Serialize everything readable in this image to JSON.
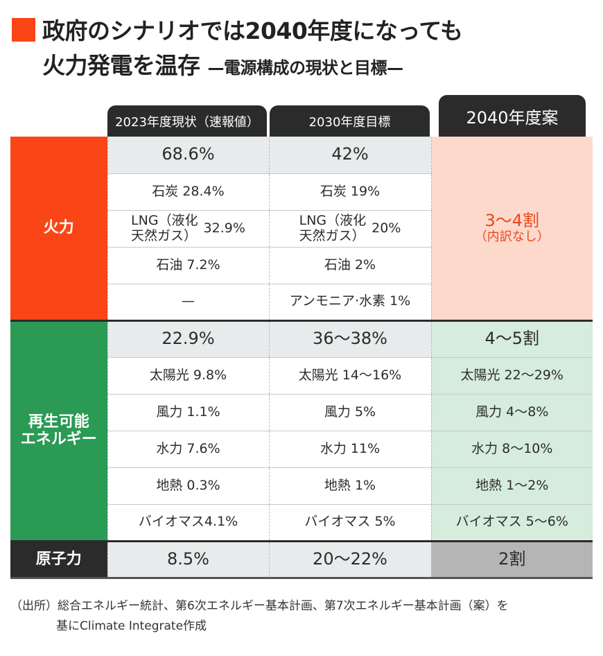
{
  "title": {
    "line1": "政府のシナリオでは2040年度になっても",
    "line2": "火力発電を温存",
    "subtitle": "—電源構成の現状と目標—"
  },
  "headers": [
    "2023年度現状（速報値）",
    "2030年度目標",
    "2040年度案"
  ],
  "fossil": {
    "label": "火力",
    "total": [
      "68.6%",
      "42%"
    ],
    "coal": [
      "石炭 28.4%",
      "石炭 19%"
    ],
    "lng_name": "LNG（液化天然ガス）",
    "lng_name_1": "LNG（液化",
    "lng_name_2": "天然ガス）",
    "lng": [
      "32.9%",
      "20%"
    ],
    "oil": [
      "石油 7.2%",
      "石油 2%"
    ],
    "ammonia": [
      "—",
      "アンモニア·水素 1%"
    ],
    "plan": "3〜4割",
    "plan_note": "（内訳なし）"
  },
  "renewable": {
    "label_1": "再生可能",
    "label_2": "エネルギー",
    "total": [
      "22.9%",
      "36〜38%",
      "4〜5割"
    ],
    "solar": [
      "太陽光 9.8%",
      "太陽光 14〜16%",
      "太陽光 22〜29%"
    ],
    "wind": [
      "風力 1.1%",
      "風力 5%",
      "風力 4〜8%"
    ],
    "hydro": [
      "水力 7.6%",
      "水力 11%",
      "水力 8〜10%"
    ],
    "geo": [
      "地熱 0.3%",
      "地熱 1%",
      "地熱 1〜2%"
    ],
    "bio": [
      "バイオマス4.1%",
      "バイオマス 5%",
      "バイオマス 5〜6%"
    ]
  },
  "nuclear": {
    "label": "原子力",
    "values": [
      "8.5%",
      "20〜22%",
      "2割"
    ]
  },
  "footer": {
    "line1": "（出所）総合エネルギー統計、第6次エネルギー基本計画、第7次エネルギー基本計画（案）を",
    "line2": "基にClimate Integrate作成"
  }
}
